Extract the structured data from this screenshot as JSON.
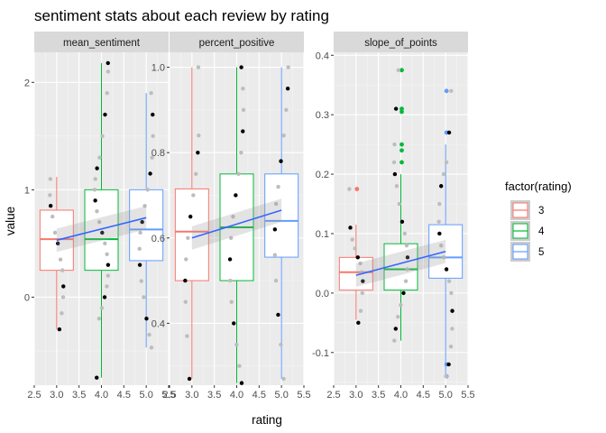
{
  "chart_data": {
    "type": "boxplot",
    "title": "sentiment stats about each review by rating",
    "xlabel": "rating",
    "ylabel": "value",
    "xlim": [
      2.5,
      5.5
    ],
    "x_ticks": [
      "2.5",
      "3.0",
      "3.5",
      "4.0",
      "4.5",
      "5.0",
      "5.5"
    ],
    "grid": true,
    "legend": {
      "title": "factor(rating)",
      "position": "right",
      "entries": [
        {
          "label": "3",
          "color": "#F8766D"
        },
        {
          "label": "4",
          "color": "#00BA38"
        },
        {
          "label": "5",
          "color": "#619CFF"
        }
      ]
    },
    "panels": [
      {
        "name": "mean_sentiment",
        "ylim": [
          -0.82,
          2.28
        ],
        "y_ticks": [
          {
            "value": 0,
            "label": "0"
          },
          {
            "value": 1,
            "label": "1"
          },
          {
            "value": 2,
            "label": "2"
          }
        ],
        "boxes": [
          {
            "rating": 3,
            "color": "#F8766D",
            "min": -0.3,
            "q1": 0.25,
            "median": 0.54,
            "q3": 0.81,
            "max": 1.12
          },
          {
            "rating": 4,
            "color": "#00BA38",
            "min": -0.75,
            "q1": 0.25,
            "median": 0.54,
            "q3": 1.0,
            "max": 2.18
          },
          {
            "rating": 5,
            "color": "#619CFF",
            "min": -0.47,
            "q1": 0.34,
            "median": 0.63,
            "q3": 1.0,
            "max": 1.9
          }
        ],
        "trend": [
          {
            "x": 3,
            "y": 0.53
          },
          {
            "x": 5,
            "y": 0.74
          }
        ],
        "points": [
          {
            "x": 3,
            "y": -0.3
          },
          {
            "x": 3,
            "y": -0.15
          },
          {
            "x": 3,
            "y": 0.0
          },
          {
            "x": 3,
            "y": 0.1
          },
          {
            "x": 3,
            "y": 0.25
          },
          {
            "x": 3,
            "y": 0.35
          },
          {
            "x": 3,
            "y": 0.5
          },
          {
            "x": 3,
            "y": 0.6
          },
          {
            "x": 3,
            "y": 0.75
          },
          {
            "x": 3,
            "y": 0.85
          },
          {
            "x": 3,
            "y": 0.95
          },
          {
            "x": 3,
            "y": 1.1
          },
          {
            "x": 4,
            "y": -0.75
          },
          {
            "x": 4,
            "y": -0.2
          },
          {
            "x": 4,
            "y": -0.1
          },
          {
            "x": 4,
            "y": 0.0
          },
          {
            "x": 4,
            "y": 0.1
          },
          {
            "x": 4,
            "y": 0.2
          },
          {
            "x": 4,
            "y": 0.3
          },
          {
            "x": 4,
            "y": 0.4
          },
          {
            "x": 4,
            "y": 0.5
          },
          {
            "x": 4,
            "y": 0.6
          },
          {
            "x": 4,
            "y": 0.7
          },
          {
            "x": 4,
            "y": 0.8
          },
          {
            "x": 4,
            "y": 0.9
          },
          {
            "x": 4,
            "y": 1.0
          },
          {
            "x": 4,
            "y": 1.1
          },
          {
            "x": 4,
            "y": 1.2
          },
          {
            "x": 4,
            "y": 1.3
          },
          {
            "x": 4,
            "y": 1.5
          },
          {
            "x": 4,
            "y": 1.7
          },
          {
            "x": 4,
            "y": 1.9
          },
          {
            "x": 4,
            "y": 2.1
          },
          {
            "x": 4,
            "y": 2.18
          },
          {
            "x": 5,
            "y": -0.47
          },
          {
            "x": 5,
            "y": -0.35
          },
          {
            "x": 5,
            "y": -0.2
          },
          {
            "x": 5,
            "y": 0.0
          },
          {
            "x": 5,
            "y": 0.15
          },
          {
            "x": 5,
            "y": 0.3
          },
          {
            "x": 5,
            "y": 0.45
          },
          {
            "x": 5,
            "y": 0.6
          },
          {
            "x": 5,
            "y": 0.7
          },
          {
            "x": 5,
            "y": 0.85
          },
          {
            "x": 5,
            "y": 1.0
          },
          {
            "x": 5,
            "y": 1.15
          },
          {
            "x": 5,
            "y": 1.3
          },
          {
            "x": 5,
            "y": 1.5
          },
          {
            "x": 5,
            "y": 1.7
          },
          {
            "x": 5,
            "y": 1.9
          }
        ]
      },
      {
        "name": "percent_positive",
        "ylim": [
          0.255,
          1.035
        ],
        "y_ticks": [
          {
            "value": 0.4,
            "label": "0.4"
          },
          {
            "value": 0.6,
            "label": "0.6"
          },
          {
            "value": 0.8,
            "label": "0.8"
          },
          {
            "value": 1.0,
            "label": "1.0"
          }
        ],
        "boxes": [
          {
            "rating": 3,
            "color": "#F8766D",
            "min": 0.27,
            "q1": 0.5,
            "median": 0.615,
            "q3": 0.715,
            "max": 1.0
          },
          {
            "rating": 4,
            "color": "#00BA38",
            "min": 0.26,
            "q1": 0.5,
            "median": 0.625,
            "q3": 0.75,
            "max": 1.0
          },
          {
            "rating": 5,
            "color": "#619CFF",
            "min": 0.27,
            "q1": 0.555,
            "median": 0.64,
            "q3": 0.75,
            "max": 1.0
          }
        ],
        "trend": [
          {
            "x": 3,
            "y": 0.6
          },
          {
            "x": 5,
            "y": 0.665
          }
        ],
        "points": [
          {
            "x": 3,
            "y": 0.27
          },
          {
            "x": 3,
            "y": 0.37
          },
          {
            "x": 3,
            "y": 0.45
          },
          {
            "x": 3,
            "y": 0.5
          },
          {
            "x": 3,
            "y": 0.55
          },
          {
            "x": 3,
            "y": 0.6
          },
          {
            "x": 3,
            "y": 0.65
          },
          {
            "x": 3,
            "y": 0.7
          },
          {
            "x": 3,
            "y": 0.75
          },
          {
            "x": 3,
            "y": 0.8
          },
          {
            "x": 3,
            "y": 0.84
          },
          {
            "x": 3,
            "y": 1.0
          },
          {
            "x": 4,
            "y": 0.26
          },
          {
            "x": 4,
            "y": 0.3
          },
          {
            "x": 4,
            "y": 0.35
          },
          {
            "x": 4,
            "y": 0.4
          },
          {
            "x": 4,
            "y": 0.45
          },
          {
            "x": 4,
            "y": 0.5
          },
          {
            "x": 4,
            "y": 0.55
          },
          {
            "x": 4,
            "y": 0.6
          },
          {
            "x": 4,
            "y": 0.65
          },
          {
            "x": 4,
            "y": 0.7
          },
          {
            "x": 4,
            "y": 0.75
          },
          {
            "x": 4,
            "y": 0.8
          },
          {
            "x": 4,
            "y": 0.85
          },
          {
            "x": 4,
            "y": 0.9
          },
          {
            "x": 4,
            "y": 0.95
          },
          {
            "x": 4,
            "y": 1.0
          },
          {
            "x": 5,
            "y": 0.27
          },
          {
            "x": 5,
            "y": 0.35
          },
          {
            "x": 5,
            "y": 0.42
          },
          {
            "x": 5,
            "y": 0.5
          },
          {
            "x": 5,
            "y": 0.56
          },
          {
            "x": 5,
            "y": 0.62
          },
          {
            "x": 5,
            "y": 0.68
          },
          {
            "x": 5,
            "y": 0.72
          },
          {
            "x": 5,
            "y": 0.78
          },
          {
            "x": 5,
            "y": 0.84
          },
          {
            "x": 5,
            "y": 0.9
          },
          {
            "x": 5,
            "y": 0.95
          },
          {
            "x": 5,
            "y": 1.0
          }
        ]
      },
      {
        "name": "slope_of_points",
        "ylim": [
          -0.155,
          0.405
        ],
        "y_ticks": [
          {
            "value": -0.1,
            "label": "-0.1"
          },
          {
            "value": 0.0,
            "label": "0.0"
          },
          {
            "value": 0.1,
            "label": "0.1"
          },
          {
            "value": 0.2,
            "label": "0.2"
          },
          {
            "value": 0.3,
            "label": "0.3"
          },
          {
            "value": 0.4,
            "label": "0.4"
          }
        ],
        "boxes": [
          {
            "rating": 3,
            "color": "#F8766D",
            "min": -0.045,
            "q1": 0.005,
            "median": 0.035,
            "q3": 0.06,
            "max": 0.115
          },
          {
            "rating": 4,
            "color": "#00BA38",
            "min": -0.08,
            "q1": 0.005,
            "median": 0.04,
            "q3": 0.083,
            "max": 0.2
          },
          {
            "rating": 5,
            "color": "#619CFF",
            "min": -0.14,
            "q1": 0.025,
            "median": 0.06,
            "q3": 0.115,
            "max": 0.25
          }
        ],
        "outliers": [
          {
            "x": 3,
            "y": 0.175,
            "color": "#F8766D"
          },
          {
            "x": 4,
            "y": 0.375,
            "color": "#00BA38"
          },
          {
            "x": 4,
            "y": 0.31,
            "color": "#00BA38"
          },
          {
            "x": 4,
            "y": 0.305,
            "color": "#00BA38"
          },
          {
            "x": 4,
            "y": 0.25,
            "color": "#00BA38"
          },
          {
            "x": 4,
            "y": 0.24,
            "color": "#00BA38"
          },
          {
            "x": 4,
            "y": 0.22,
            "color": "#00BA38"
          },
          {
            "x": 5,
            "y": 0.34,
            "color": "#619CFF"
          },
          {
            "x": 5,
            "y": 0.27,
            "color": "#619CFF"
          },
          {
            "x": 5,
            "y": -0.12,
            "color": "#619CFF"
          },
          {
            "x": 5,
            "y": -0.14,
            "color": "#619CFF"
          }
        ],
        "trend": [
          {
            "x": 3,
            "y": 0.03
          },
          {
            "x": 5,
            "y": 0.07
          }
        ],
        "points": [
          {
            "x": 3,
            "y": -0.05
          },
          {
            "x": 3,
            "y": -0.03
          },
          {
            "x": 3,
            "y": 0.0
          },
          {
            "x": 3,
            "y": 0.02
          },
          {
            "x": 3,
            "y": 0.035
          },
          {
            "x": 3,
            "y": 0.05
          },
          {
            "x": 3,
            "y": 0.06
          },
          {
            "x": 3,
            "y": 0.075
          },
          {
            "x": 3,
            "y": 0.09
          },
          {
            "x": 3,
            "y": 0.11
          },
          {
            "x": 3,
            "y": 0.175
          },
          {
            "x": 4,
            "y": -0.08
          },
          {
            "x": 4,
            "y": -0.06
          },
          {
            "x": 4,
            "y": -0.04
          },
          {
            "x": 4,
            "y": -0.02
          },
          {
            "x": 4,
            "y": 0.0
          },
          {
            "x": 4,
            "y": 0.02
          },
          {
            "x": 4,
            "y": 0.04
          },
          {
            "x": 4,
            "y": 0.06
          },
          {
            "x": 4,
            "y": 0.08
          },
          {
            "x": 4,
            "y": 0.1
          },
          {
            "x": 4,
            "y": 0.12
          },
          {
            "x": 4,
            "y": 0.15
          },
          {
            "x": 4,
            "y": 0.18
          },
          {
            "x": 4,
            "y": 0.2
          },
          {
            "x": 4,
            "y": 0.22
          },
          {
            "x": 4,
            "y": 0.25
          },
          {
            "x": 4,
            "y": 0.31
          },
          {
            "x": 4,
            "y": 0.375
          },
          {
            "x": 5,
            "y": -0.14
          },
          {
            "x": 5,
            "y": -0.12
          },
          {
            "x": 5,
            "y": -0.09
          },
          {
            "x": 5,
            "y": -0.06
          },
          {
            "x": 5,
            "y": -0.03
          },
          {
            "x": 5,
            "y": 0.0
          },
          {
            "x": 5,
            "y": 0.02
          },
          {
            "x": 5,
            "y": 0.04
          },
          {
            "x": 5,
            "y": 0.06
          },
          {
            "x": 5,
            "y": 0.08
          },
          {
            "x": 5,
            "y": 0.1
          },
          {
            "x": 5,
            "y": 0.12
          },
          {
            "x": 5,
            "y": 0.15
          },
          {
            "x": 5,
            "y": 0.18
          },
          {
            "x": 5,
            "y": 0.2
          },
          {
            "x": 5,
            "y": 0.22
          },
          {
            "x": 5,
            "y": 0.27
          },
          {
            "x": 5,
            "y": 0.34
          }
        ]
      }
    ]
  }
}
